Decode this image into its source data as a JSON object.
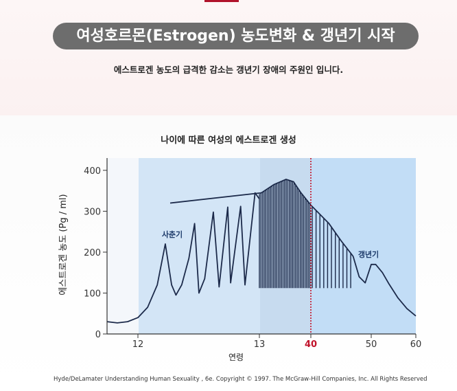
{
  "header": {
    "title": "여성호르몬(Estrogen) 농도변화 & 갱년기 시작",
    "subtitle": "에스트로겐 농도의 급격한 감소는 갱년기 장애의 주원인 입니다."
  },
  "chart_data": {
    "type": "line",
    "title": "나이에 따른 여성의 에스트로겐 생성",
    "xlabel": "연령",
    "ylabel": "에스트로겐 농도 (Pg / ml)",
    "ylim": [
      0,
      430
    ],
    "y_ticks": [
      "0",
      "100",
      "200",
      "300",
      "400"
    ],
    "x_ticks": [
      {
        "label": "12",
        "highlight": false
      },
      {
        "label": "13",
        "highlight": false
      },
      {
        "label": "40",
        "highlight": true
      },
      {
        "label": "50",
        "highlight": false
      },
      {
        "label": "60",
        "highlight": false
      }
    ],
    "annotations": [
      {
        "label": "사춘기",
        "x": 12.7,
        "y": 235
      },
      {
        "label": "갱년기",
        "x": 51,
        "y": 185
      }
    ],
    "reference_line": {
      "x": 40,
      "color": "#c0122a",
      "style": "dotted"
    },
    "series": [
      {
        "values": [
          [
            9,
            30
          ],
          [
            10,
            27
          ],
          [
            11,
            30
          ],
          [
            12,
            40
          ],
          [
            12.3,
            65
          ],
          [
            12.6,
            120
          ],
          [
            12.85,
            220
          ],
          [
            13.1,
            120
          ],
          [
            13.4,
            95
          ],
          [
            13.8,
            120
          ],
          [
            14.3,
            185
          ],
          [
            14.7,
            270
          ],
          [
            15,
            100
          ],
          [
            15.4,
            135
          ],
          [
            16,
            298
          ],
          [
            16.4,
            115
          ],
          [
            17,
            310
          ],
          [
            17.2,
            125
          ],
          [
            17.9,
            312
          ],
          [
            18.2,
            120
          ],
          [
            18.9,
            345
          ],
          [
            19.2,
            330
          ]
        ]
      },
      {
        "values": [
          [
            13,
            320
          ],
          [
            20,
            345
          ],
          [
            25,
            365
          ],
          [
            30,
            378
          ],
          [
            33,
            372
          ],
          [
            36,
            345
          ],
          [
            40,
            315
          ],
          [
            43,
            270
          ],
          [
            45,
            228
          ],
          [
            47,
            190
          ]
        ]
      },
      {
        "values": [
          [
            47,
            190
          ],
          [
            48,
            140
          ],
          [
            49,
            125
          ],
          [
            50,
            170
          ],
          [
            51,
            170
          ],
          [
            52.5,
            150
          ],
          [
            54,
            122
          ],
          [
            56,
            88
          ],
          [
            58,
            62
          ],
          [
            60,
            44
          ]
        ]
      }
    ],
    "colors": {
      "line": "#1c2a4a",
      "bg_light": "#d4e6f7",
      "bg_mid": "#c3daf1",
      "bg_dark": "#d6e4f2",
      "bg_right": "#c1dcf5"
    },
    "grid": false
  },
  "credit": "Hyde/DeLamater Understanding Human Sexuality , 6e. Copyright © 1997. The McGraw-Hill Companies, Inc. All Rights Reserved"
}
